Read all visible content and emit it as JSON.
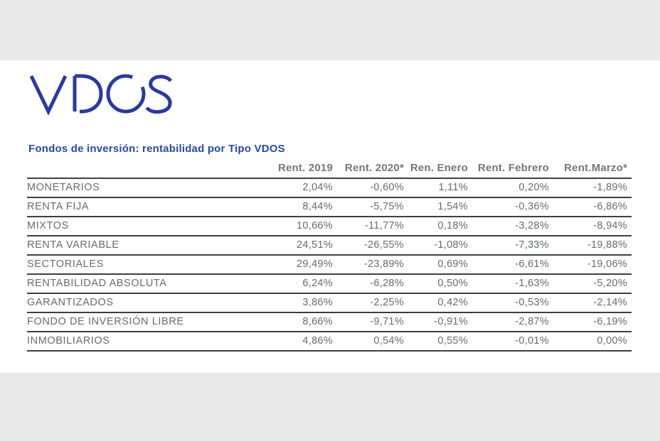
{
  "page": {
    "background_color": "#e8e8e8",
    "card_color": "#ffffff"
  },
  "logo": {
    "text": "VDOS",
    "color": "#2b3a99"
  },
  "title": {
    "text": "Fondos de inversión: rentabilidad por Tipo VDOS",
    "color": "#2a4a9a"
  },
  "table": {
    "header": [
      "Rent. 2019",
      "Rent. 2020*",
      "Ren. Enero",
      "Rent. Febrero",
      "Rent.Marzo*"
    ],
    "rows": [
      {
        "label": "MONETARIOS",
        "values": [
          "2,04%",
          "-0,60%",
          "1,11%",
          "0,20%",
          "-1,89%"
        ]
      },
      {
        "label": "RENTA FIJA",
        "values": [
          "8,44%",
          "-5,75%",
          "1,54%",
          "-0,36%",
          "-6,86%"
        ]
      },
      {
        "label": "MIXTOS",
        "values": [
          "10,66%",
          "-11,77%",
          "0,18%",
          "-3,28%",
          "-8,94%"
        ]
      },
      {
        "label": "RENTA VARIABLE",
        "values": [
          "24,51%",
          "-26,55%",
          "-1,08%",
          "-7,33%",
          "-19,88%"
        ]
      },
      {
        "label": "SECTORIALES",
        "values": [
          "29,49%",
          "-23,89%",
          "0,69%",
          "-6,61%",
          "-19,06%"
        ]
      },
      {
        "label": "RENTABILIDAD ABSOLUTA",
        "values": [
          "6,24%",
          "-6,28%",
          "0,50%",
          "-1,63%",
          "-5,20%"
        ]
      },
      {
        "label": "GARANTIZADOS",
        "values": [
          "3,86%",
          "-2,25%",
          "0,42%",
          "-0,53%",
          "-2,14%"
        ]
      },
      {
        "label": "FONDO DE INVERSIÓN LIBRE",
        "values": [
          "8,66%",
          "-9,71%",
          "-0,91%",
          "-2,87%",
          "-6,19%"
        ]
      },
      {
        "label": "INMOBILIARIOS",
        "values": [
          "4,86%",
          "0,54%",
          "0,55%",
          "-0,01%",
          "0,00%"
        ]
      }
    ],
    "text_color": "#696a6c",
    "line_color": "#3e3e3e"
  },
  "chart_data": {
    "type": "table",
    "title": "Fondos de inversión: rentabilidad por Tipo VDOS",
    "columns": [
      "Rent. 2019",
      "Rent. 2020*",
      "Ren. Enero",
      "Rent. Febrero",
      "Rent.Marzo*"
    ],
    "unit": "percent",
    "decimal_separator": ",",
    "rows": [
      {
        "category": "MONETARIOS",
        "values": [
          2.04,
          -0.6,
          1.11,
          0.2,
          -1.89
        ]
      },
      {
        "category": "RENTA FIJA",
        "values": [
          8.44,
          -5.75,
          1.54,
          -0.36,
          -6.86
        ]
      },
      {
        "category": "MIXTOS",
        "values": [
          10.66,
          -11.77,
          0.18,
          -3.28,
          -8.94
        ]
      },
      {
        "category": "RENTA VARIABLE",
        "values": [
          24.51,
          -26.55,
          -1.08,
          -7.33,
          -19.88
        ]
      },
      {
        "category": "SECTORIALES",
        "values": [
          29.49,
          -23.89,
          0.69,
          -6.61,
          -19.06
        ]
      },
      {
        "category": "RENTABILIDAD ABSOLUTA",
        "values": [
          6.24,
          -6.28,
          0.5,
          -1.63,
          -5.2
        ]
      },
      {
        "category": "GARANTIZADOS",
        "values": [
          3.86,
          -2.25,
          0.42,
          -0.53,
          -2.14
        ]
      },
      {
        "category": "FONDO DE INVERSIÓN LIBRE",
        "values": [
          8.66,
          -9.71,
          -0.91,
          -2.87,
          -6.19
        ]
      },
      {
        "category": "INMOBILIARIOS",
        "values": [
          4.86,
          0.54,
          0.55,
          -0.01,
          0.0
        ]
      }
    ]
  }
}
